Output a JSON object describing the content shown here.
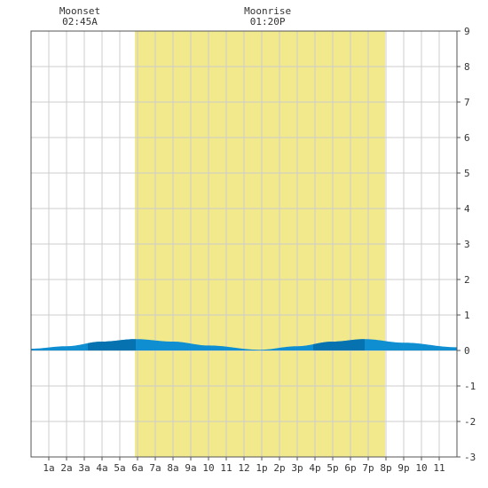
{
  "chart_data": {
    "type": "area",
    "title": "",
    "xlabel": "",
    "ylabel": "",
    "x_range_hours": [
      0,
      24
    ],
    "ylim": [
      -3,
      9
    ],
    "y_ticks": [
      "9",
      "8",
      "7",
      "6",
      "5",
      "4",
      "3",
      "2",
      "1",
      "0",
      "-1",
      "-2",
      "-3"
    ],
    "x_ticks": [
      {
        "hour": 1,
        "label": "1a"
      },
      {
        "hour": 2,
        "label": "2a"
      },
      {
        "hour": 3,
        "label": "3a"
      },
      {
        "hour": 4,
        "label": "4a"
      },
      {
        "hour": 5,
        "label": "5a"
      },
      {
        "hour": 6,
        "label": "6a"
      },
      {
        "hour": 7,
        "label": "7a"
      },
      {
        "hour": 8,
        "label": "8a"
      },
      {
        "hour": 9,
        "label": "9a"
      },
      {
        "hour": 10,
        "label": "10"
      },
      {
        "hour": 11,
        "label": "11"
      },
      {
        "hour": 12,
        "label": "12"
      },
      {
        "hour": 13,
        "label": "1p"
      },
      {
        "hour": 14,
        "label": "2p"
      },
      {
        "hour": 15,
        "label": "3p"
      },
      {
        "hour": 16,
        "label": "4p"
      },
      {
        "hour": 17,
        "label": "5p"
      },
      {
        "hour": 18,
        "label": "6p"
      },
      {
        "hour": 19,
        "label": "7p"
      },
      {
        "hour": 20,
        "label": "8p"
      },
      {
        "hour": 21,
        "label": "9p"
      },
      {
        "hour": 22,
        "label": "10"
      },
      {
        "hour": 23,
        "label": "11"
      }
    ],
    "daylight_hours": [
      5.85,
      19.95
    ],
    "tide_series": {
      "x": [
        0,
        2,
        4,
        5.9,
        8,
        10,
        12.9,
        15,
        17,
        18.8,
        21,
        24
      ],
      "values": [
        0.05,
        0.12,
        0.25,
        0.32,
        0.25,
        0.14,
        0.02,
        0.12,
        0.25,
        0.32,
        0.22,
        0.09
      ]
    },
    "shade_bands": [
      {
        "from": 3.2,
        "to": 5.9
      },
      {
        "from": 15.9,
        "to": 18.8
      }
    ],
    "colors": {
      "tide": "#0f8fd1",
      "tide_dark": "#0673b0",
      "daylight": "#f2e98c",
      "grid": "#cccccc",
      "axis": "#555555"
    }
  },
  "moon": {
    "moonset": {
      "label": "Moonset",
      "time": "02:45A",
      "hour": 2.75
    },
    "moonrise": {
      "label": "Moonrise",
      "time": "01:20P",
      "hour": 13.33
    }
  }
}
